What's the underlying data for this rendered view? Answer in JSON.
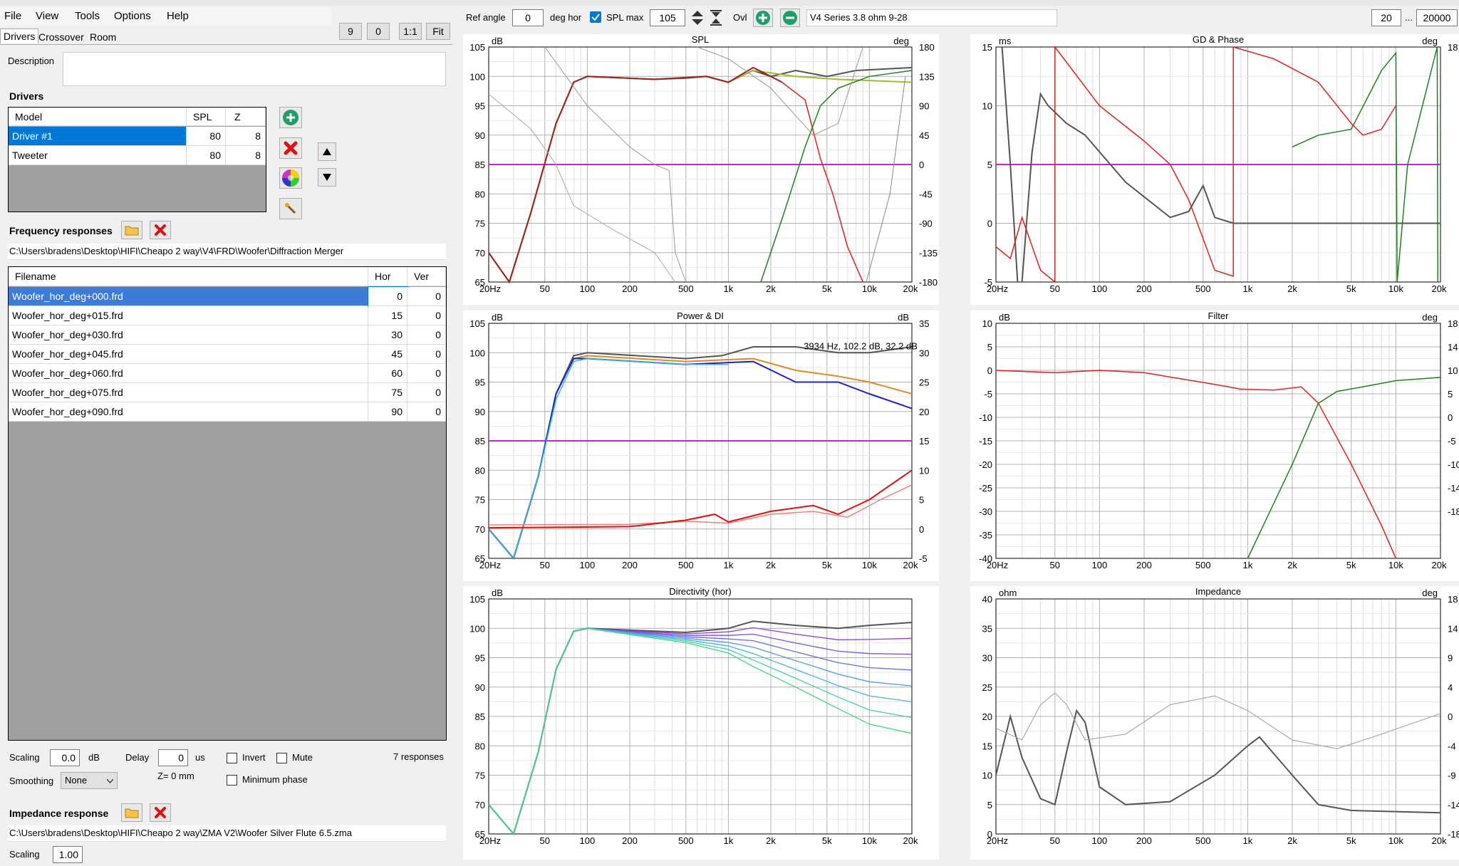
{
  "menu": [
    "File",
    "View",
    "Tools",
    "Options",
    "Help"
  ],
  "tabs": [
    "Drivers",
    "Crossover",
    "Room"
  ],
  "view_buttons": [
    "9",
    "0",
    "1:1",
    "Fit"
  ],
  "description_label": "Description",
  "drivers": {
    "title": "Drivers",
    "headers": [
      "Model",
      "SPL",
      "Z"
    ],
    "rows": [
      {
        "model": "Driver #1",
        "spl": "80",
        "z": "8"
      },
      {
        "model": "Tweeter",
        "spl": "80",
        "z": "8"
      }
    ]
  },
  "freq": {
    "title": "Frequency responses",
    "path": "C:\\Users\\bradens\\Desktop\\HIFI\\Cheapo 2 way\\V4\\FRD\\Woofer\\Diffraction Merger",
    "headers": [
      "Filename",
      "Hor",
      "Ver"
    ],
    "rows": [
      {
        "f": "Woofer_hor_deg+000.frd",
        "h": "0",
        "v": "0"
      },
      {
        "f": "Woofer_hor_deg+015.frd",
        "h": "15",
        "v": "0"
      },
      {
        "f": "Woofer_hor_deg+030.frd",
        "h": "30",
        "v": "0"
      },
      {
        "f": "Woofer_hor_deg+045.frd",
        "h": "45",
        "v": "0"
      },
      {
        "f": "Woofer_hor_deg+060.frd",
        "h": "60",
        "v": "0"
      },
      {
        "f": "Woofer_hor_deg+075.frd",
        "h": "75",
        "v": "0"
      },
      {
        "f": "Woofer_hor_deg+090.frd",
        "h": "90",
        "v": "0"
      }
    ]
  },
  "controls": {
    "scaling_label": "Scaling",
    "scaling_value": "0.0",
    "db": "dB",
    "delay_label": "Delay",
    "delay_value": "0",
    "us": "us",
    "invert": "Invert",
    "mute": "Mute",
    "responses": "7 responses",
    "smoothing_label": "Smoothing",
    "smoothing_value": "None",
    "z_label": "Z= 0 mm",
    "minphase": "Minimum phase"
  },
  "impedance": {
    "title": "Impedance response",
    "path": "C:\\Users\\bradens\\Desktop\\HIFI\\Cheapo 2 way\\ZMA V2\\Woofer Silver Flute 6.5.zma",
    "scaling_label": "Scaling",
    "scaling_value": "1.00"
  },
  "toolbar": {
    "ref_angle_label": "Ref angle",
    "ref_angle_value": "0",
    "deg_hor": "deg hor",
    "spl_max_label": "SPL max",
    "spl_max_value": "105",
    "ovl": "Ovl",
    "project": "V4 Series 3.8 ohm 9-28",
    "fmin": "20",
    "ellipsis": "...",
    "fmax": "20000"
  },
  "x_ticks": [
    "20Hz",
    "50",
    "100",
    "200",
    "500",
    "1k",
    "2k",
    "5k",
    "10k",
    "20k"
  ],
  "charts": {
    "spl": {
      "title": "SPL",
      "left_unit": "dB",
      "right_unit": "deg",
      "left_ticks": [
        "105",
        "100",
        "95",
        "90",
        "85",
        "80",
        "75",
        "70",
        "65"
      ],
      "right_ticks": [
        "180",
        "135",
        "90",
        "45",
        "0",
        "-45",
        "-90",
        "-135",
        "-180"
      ]
    },
    "gd": {
      "title": "GD & Phase",
      "left_unit": "ms",
      "right_unit": "deg",
      "left_ticks": [
        "15",
        "10",
        "5",
        "0",
        "-5"
      ],
      "right_ticks": [
        "18",
        "",
        "",
        "",
        "",
        "",
        "",
        "",
        ""
      ]
    },
    "power": {
      "title": "Power & DI",
      "left_unit": "dB",
      "right_unit": "dB",
      "left_ticks": [
        "105",
        "100",
        "95",
        "90",
        "85",
        "80",
        "75",
        "70",
        "65"
      ],
      "right_ticks": [
        "35",
        "30",
        "25",
        "20",
        "15",
        "10",
        "5",
        "0",
        "-5"
      ],
      "cursor": "3934 Hz, 102.2 dB, 32.2 dB"
    },
    "filter": {
      "title": "Filter",
      "left_unit": "dB",
      "right_unit": "deg",
      "left_ticks": [
        "10",
        "5",
        "0",
        "-5",
        "-10",
        "-15",
        "-20",
        "-25",
        "-30",
        "-35",
        "-40"
      ],
      "right_ticks": [
        "18",
        "14",
        "10",
        "5",
        "0",
        "-5",
        "-10",
        "-14",
        "-18",
        "",
        ""
      ]
    },
    "dir": {
      "title": "Directivity (hor)",
      "left_unit": "dB",
      "left_ticks": [
        "105",
        "100",
        "95",
        "90",
        "85",
        "80",
        "75",
        "70",
        "65"
      ]
    },
    "imp": {
      "title": "Impedance",
      "left_unit": "ohm",
      "right_unit": "deg",
      "left_ticks": [
        "40",
        "35",
        "30",
        "25",
        "20",
        "15",
        "10",
        "5",
        "0"
      ],
      "right_ticks": [
        "18",
        "14",
        "9",
        "4",
        "0",
        "-4",
        "-9",
        "-14",
        "-18"
      ]
    }
  },
  "colors": {
    "accent": "#0078d7",
    "selected_row": "#3c7bd8",
    "magenta": "#d020d0",
    "red": "#e02020",
    "green": "#208020"
  }
}
